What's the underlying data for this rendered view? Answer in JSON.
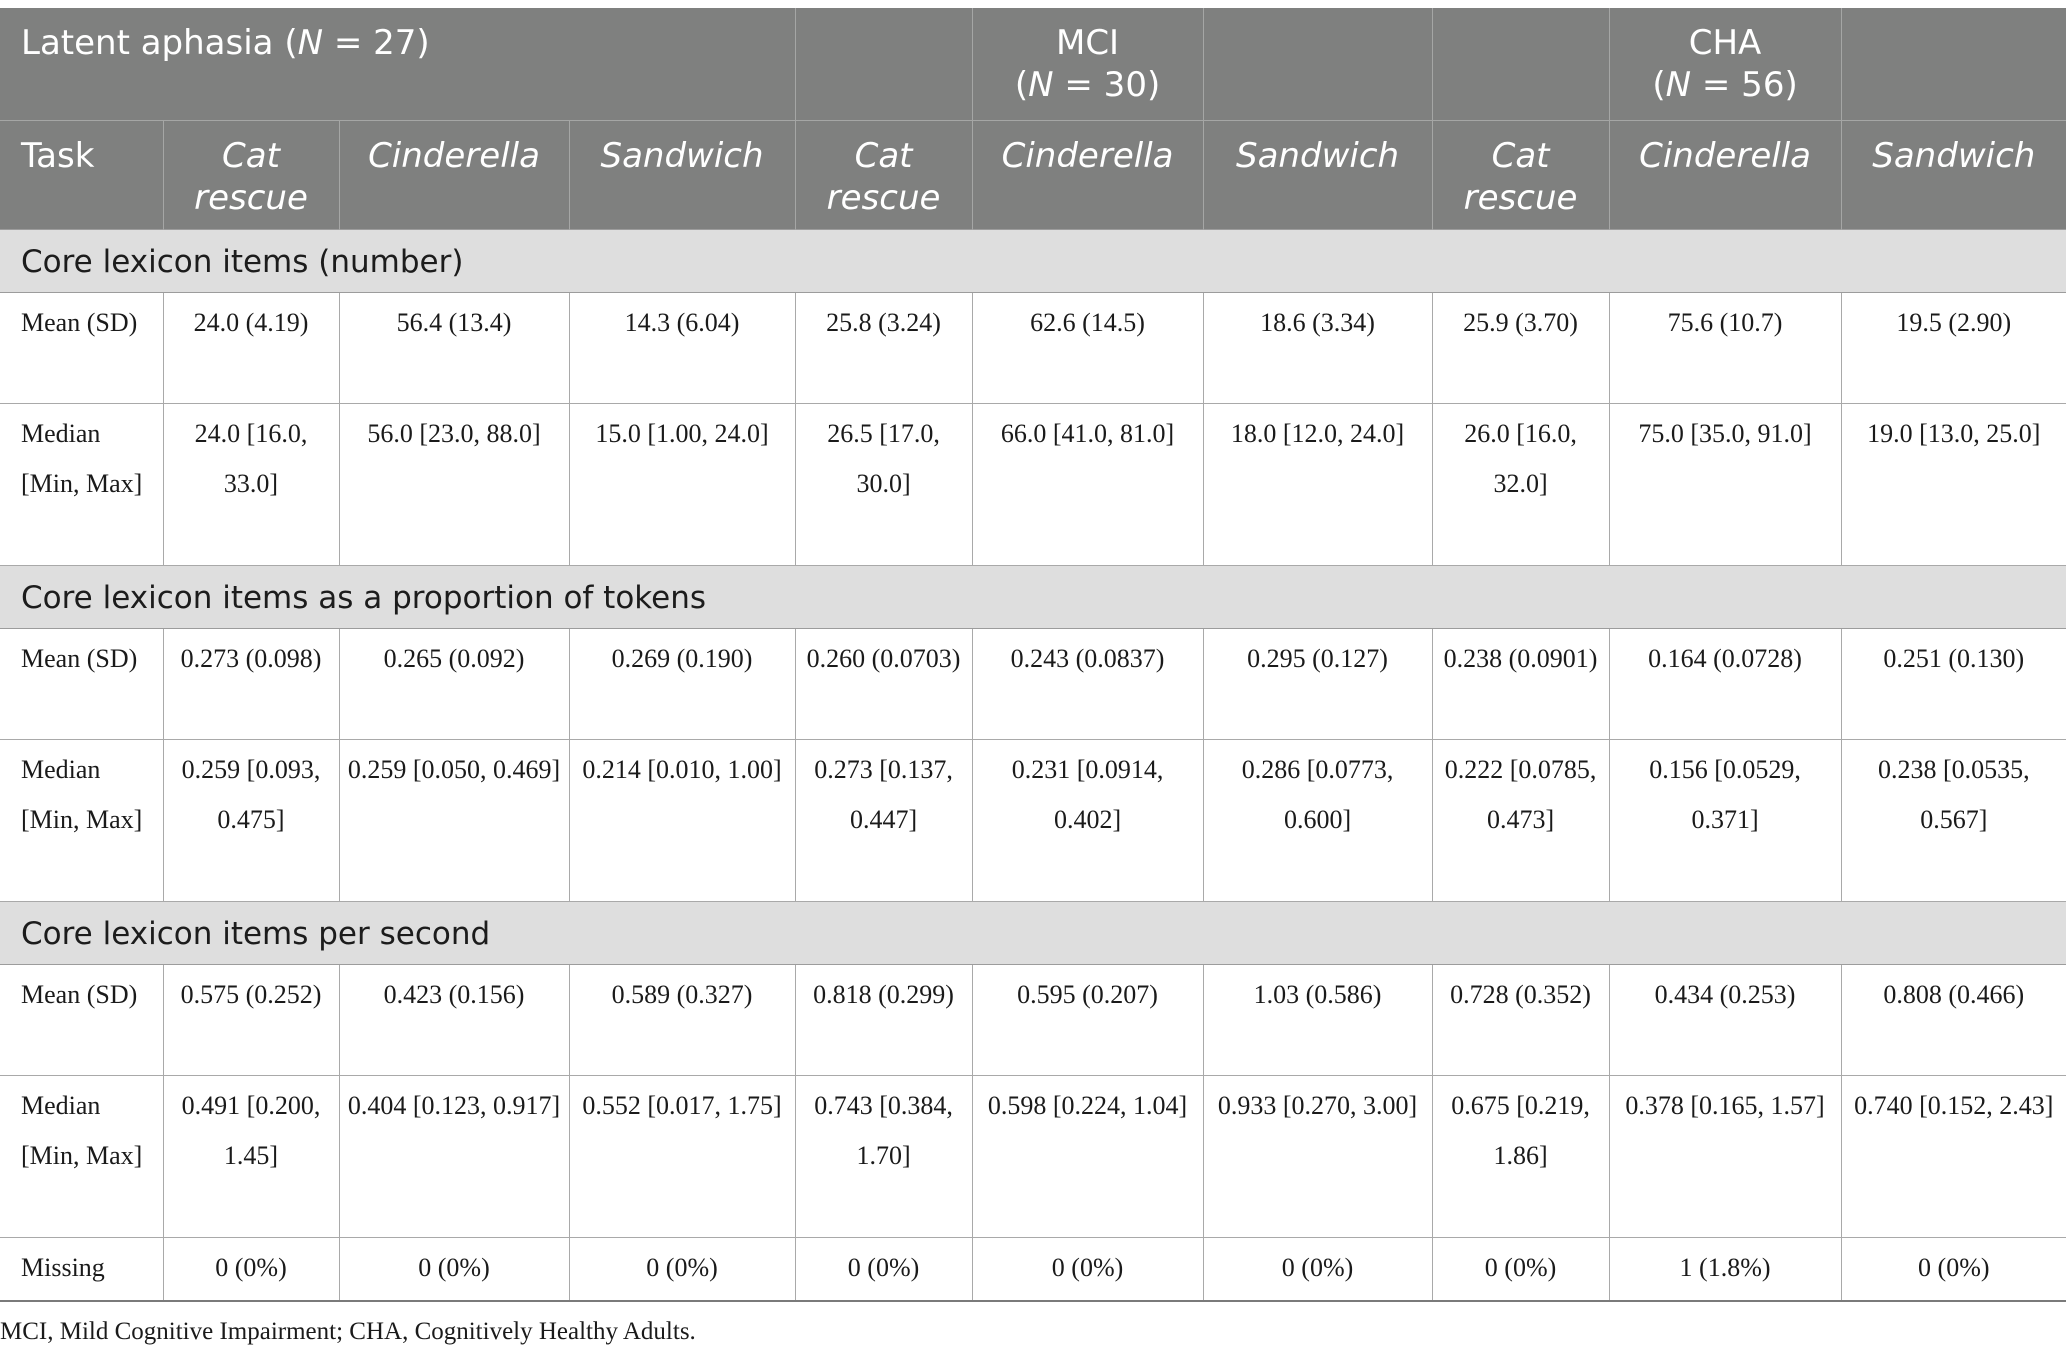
{
  "header": {
    "group1_prefix": "Latent aphasia (",
    "group1_n": "N",
    "group1_suffix": " = 27)",
    "group2_name": "MCI",
    "group2_open": "(",
    "group2_n": "N",
    "group2_suffix": " = 30)",
    "group3_name": "CHA",
    "group3_open": "(",
    "group3_n": "N",
    "group3_suffix": " = 56)",
    "task_label": "Task",
    "tasks": [
      "Cat rescue",
      "Cinderella",
      "Sandwich",
      "Cat rescue",
      "Cinderella",
      "Sandwich",
      "Cat rescue",
      "Cinderella",
      "Sandwich"
    ]
  },
  "sections": [
    {
      "title": "Core lexicon items (number)",
      "rows": [
        {
          "label": "Mean (SD)",
          "values": [
            "24.0 (4.19)",
            "56.4 (13.4)",
            "14.3 (6.04)",
            "25.8 (3.24)",
            "62.6 (14.5)",
            "18.6 (3.34)",
            "25.9 (3.70)",
            "75.6 (10.7)",
            "19.5 (2.90)"
          ]
        },
        {
          "label": "Median [Min, Max]",
          "values": [
            "24.0 [16.0, 33.0]",
            "56.0 [23.0, 88.0]",
            "15.0 [1.00, 24.0]",
            "26.5 [17.0, 30.0]",
            "66.0 [41.0, 81.0]",
            "18.0 [12.0, 24.0]",
            "26.0 [16.0, 32.0]",
            "75.0 [35.0, 91.0]",
            "19.0 [13.0, 25.0]"
          ]
        }
      ]
    },
    {
      "title": "Core lexicon items as a proportion of tokens",
      "rows": [
        {
          "label": "Mean (SD)",
          "values": [
            "0.273 (0.098)",
            "0.265 (0.092)",
            "0.269 (0.190)",
            "0.260 (0.0703)",
            "0.243 (0.0837)",
            "0.295 (0.127)",
            "0.238 (0.0901)",
            "0.164 (0.0728)",
            "0.251 (0.130)"
          ]
        },
        {
          "label": "Median [Min, Max]",
          "values": [
            "0.259 [0.093, 0.475]",
            "0.259 [0.050, 0.469]",
            "0.214 [0.010, 1.00]",
            "0.273 [0.137, 0.447]",
            "0.231 [0.0914, 0.402]",
            "0.286 [0.0773, 0.600]",
            "0.222 [0.0785, 0.473]",
            "0.156 [0.0529, 0.371]",
            "0.238 [0.0535, 0.567]"
          ]
        }
      ]
    },
    {
      "title": "Core lexicon items per second",
      "rows": [
        {
          "label": "Mean (SD)",
          "values": [
            "0.575 (0.252)",
            "0.423 (0.156)",
            "0.589 (0.327)",
            "0.818 (0.299)",
            "0.595 (0.207)",
            "1.03 (0.586)",
            "0.728 (0.352)",
            "0.434 (0.253)",
            "0.808 (0.466)"
          ]
        },
        {
          "label": "Median [Min, Max]",
          "values": [
            "0.491 [0.200, 1.45]",
            "0.404 [0.123, 0.917]",
            "0.552 [0.017, 1.75]",
            "0.743 [0.384, 1.70]",
            "0.598 [0.224, 1.04]",
            "0.933 [0.270, 3.00]",
            "0.675 [0.219, 1.86]",
            "0.378 [0.165, 1.57]",
            "0.740 [0.152, 2.43]"
          ]
        },
        {
          "label": "Missing",
          "values": [
            "0 (0%)",
            "0 (0%)",
            "0 (0%)",
            "0 (0%)",
            "0 (0%)",
            "0 (0%)",
            "0 (0%)",
            "1 (1.8%)",
            "0 (0%)"
          ]
        }
      ]
    }
  ],
  "footnote": "MCI, Mild Cognitive Impairment; CHA, Cognitively Healthy Adults."
}
